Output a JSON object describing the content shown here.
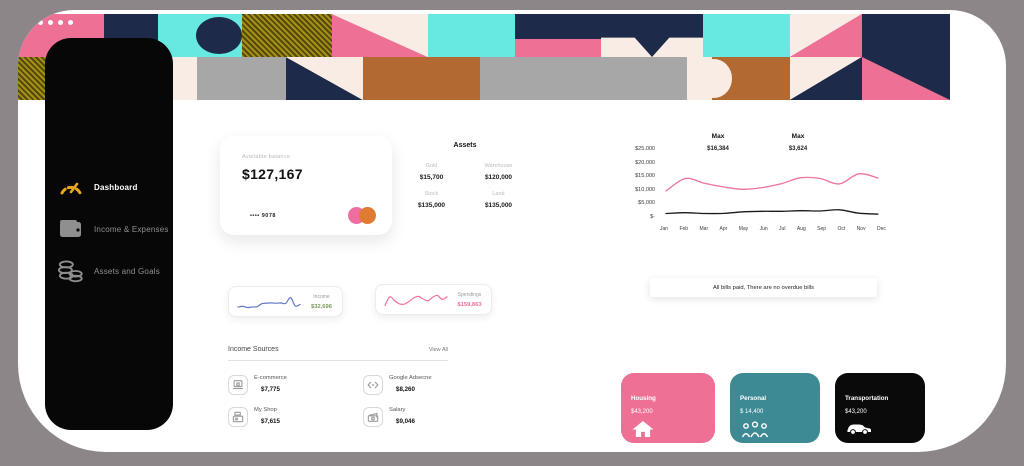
{
  "palette": {
    "accent_pink": "#ee7195",
    "navy": "#1e2a4a",
    "teal": "#67e8e0",
    "cream": "#f9ece4",
    "olive": "#a58f15",
    "brown": "#b26a32",
    "gray_block": "#a7a7a7",
    "card_teal": "#3e8a94",
    "card_black": "#0a0a0a",
    "chart_pink": "#f2729f",
    "chart_black": "#1a1a1a",
    "income_green": "#7b9a57",
    "spark_blue": "#6276c9",
    "gauge_gold": "#e8a81c",
    "page_bg": "#8d8689"
  },
  "sidebar": {
    "items": [
      {
        "label": "Dashboard",
        "icon": "gauge-icon",
        "active": true
      },
      {
        "label": "Income & Expenses",
        "icon": "wallet-icon",
        "active": false
      },
      {
        "label": "Assets and Goals",
        "icon": "coins-icon",
        "active": false
      }
    ]
  },
  "balance_card": {
    "label": "Available balance",
    "amount": "$127,167",
    "card_number": "•••• 9078"
  },
  "assets": {
    "title": "Assets",
    "items": [
      {
        "name": "Gold",
        "value": "$15,700"
      },
      {
        "name": "Warehouse",
        "value": "$120,000"
      },
      {
        "name": "Stock",
        "value": "$135,000"
      },
      {
        "name": "Land",
        "value": "$135,000"
      }
    ]
  },
  "chart_data": {
    "type": "line",
    "x": [
      "Jan",
      "Feb",
      "Mar",
      "Apr",
      "May",
      "Jun",
      "Jul",
      "Aug",
      "Sep",
      "Oct",
      "Nov",
      "Dec"
    ],
    "series": [
      {
        "name": "Spendings",
        "color": "#f2729f",
        "values": [
          10300,
          14700,
          13000,
          11700,
          10900,
          11500,
          12900,
          15000,
          14700,
          12800,
          16384,
          14900
        ]
      },
      {
        "name": "Income",
        "color": "#1a1a1a",
        "values": [
          2300,
          2600,
          2300,
          2350,
          2900,
          3100,
          3100,
          3300,
          3200,
          3624,
          2400,
          2100
        ]
      }
    ],
    "ylabels": [
      "$25,000",
      "$20,000",
      "$15,000",
      "$10,000",
      "$5,000",
      "$-"
    ],
    "ylim": [
      0,
      25000
    ],
    "grid": false,
    "annotations": [
      {
        "label": "Max",
        "value": "$16,384"
      },
      {
        "label": "Max",
        "value": "$3,624"
      }
    ]
  },
  "bills_notice": {
    "text": "All bills paid, There are no overdue bills"
  },
  "income_summary": {
    "label": "Income",
    "value": "$32,696",
    "spark": [
      30,
      32,
      28,
      30,
      31,
      42,
      44,
      45,
      44,
      45,
      43,
      65,
      34,
      39
    ]
  },
  "spending_summary": {
    "label": "Spendings",
    "value": "$159,863",
    "spark": [
      25,
      45,
      36,
      29,
      28,
      34,
      42,
      46,
      40,
      36,
      44,
      48,
      39,
      45
    ]
  },
  "income_sources": {
    "title": "Income Sources",
    "view_all": "View All",
    "items": [
      {
        "name": "E-commerce",
        "value": "$7,775",
        "icon": "laptop-icon"
      },
      {
        "name": "Google Adsecne",
        "value": "$8,260",
        "icon": "code-arrows-icon"
      },
      {
        "name": "My Shop",
        "value": "$7,615",
        "icon": "shop-icon"
      },
      {
        "name": "Salary",
        "value": "$9,046",
        "icon": "cash-icon"
      }
    ]
  },
  "expense_cards": [
    {
      "label": "Housing",
      "value": "$43,200",
      "color": "#ee7195",
      "icon": "house-icon"
    },
    {
      "label": "Personal",
      "value": "$ 14,400",
      "color": "#3e8a94",
      "icon": "people-icon"
    },
    {
      "label": "Transportation",
      "value": "$43,200",
      "color": "#0a0a0a",
      "icon": "car-icon"
    }
  ]
}
